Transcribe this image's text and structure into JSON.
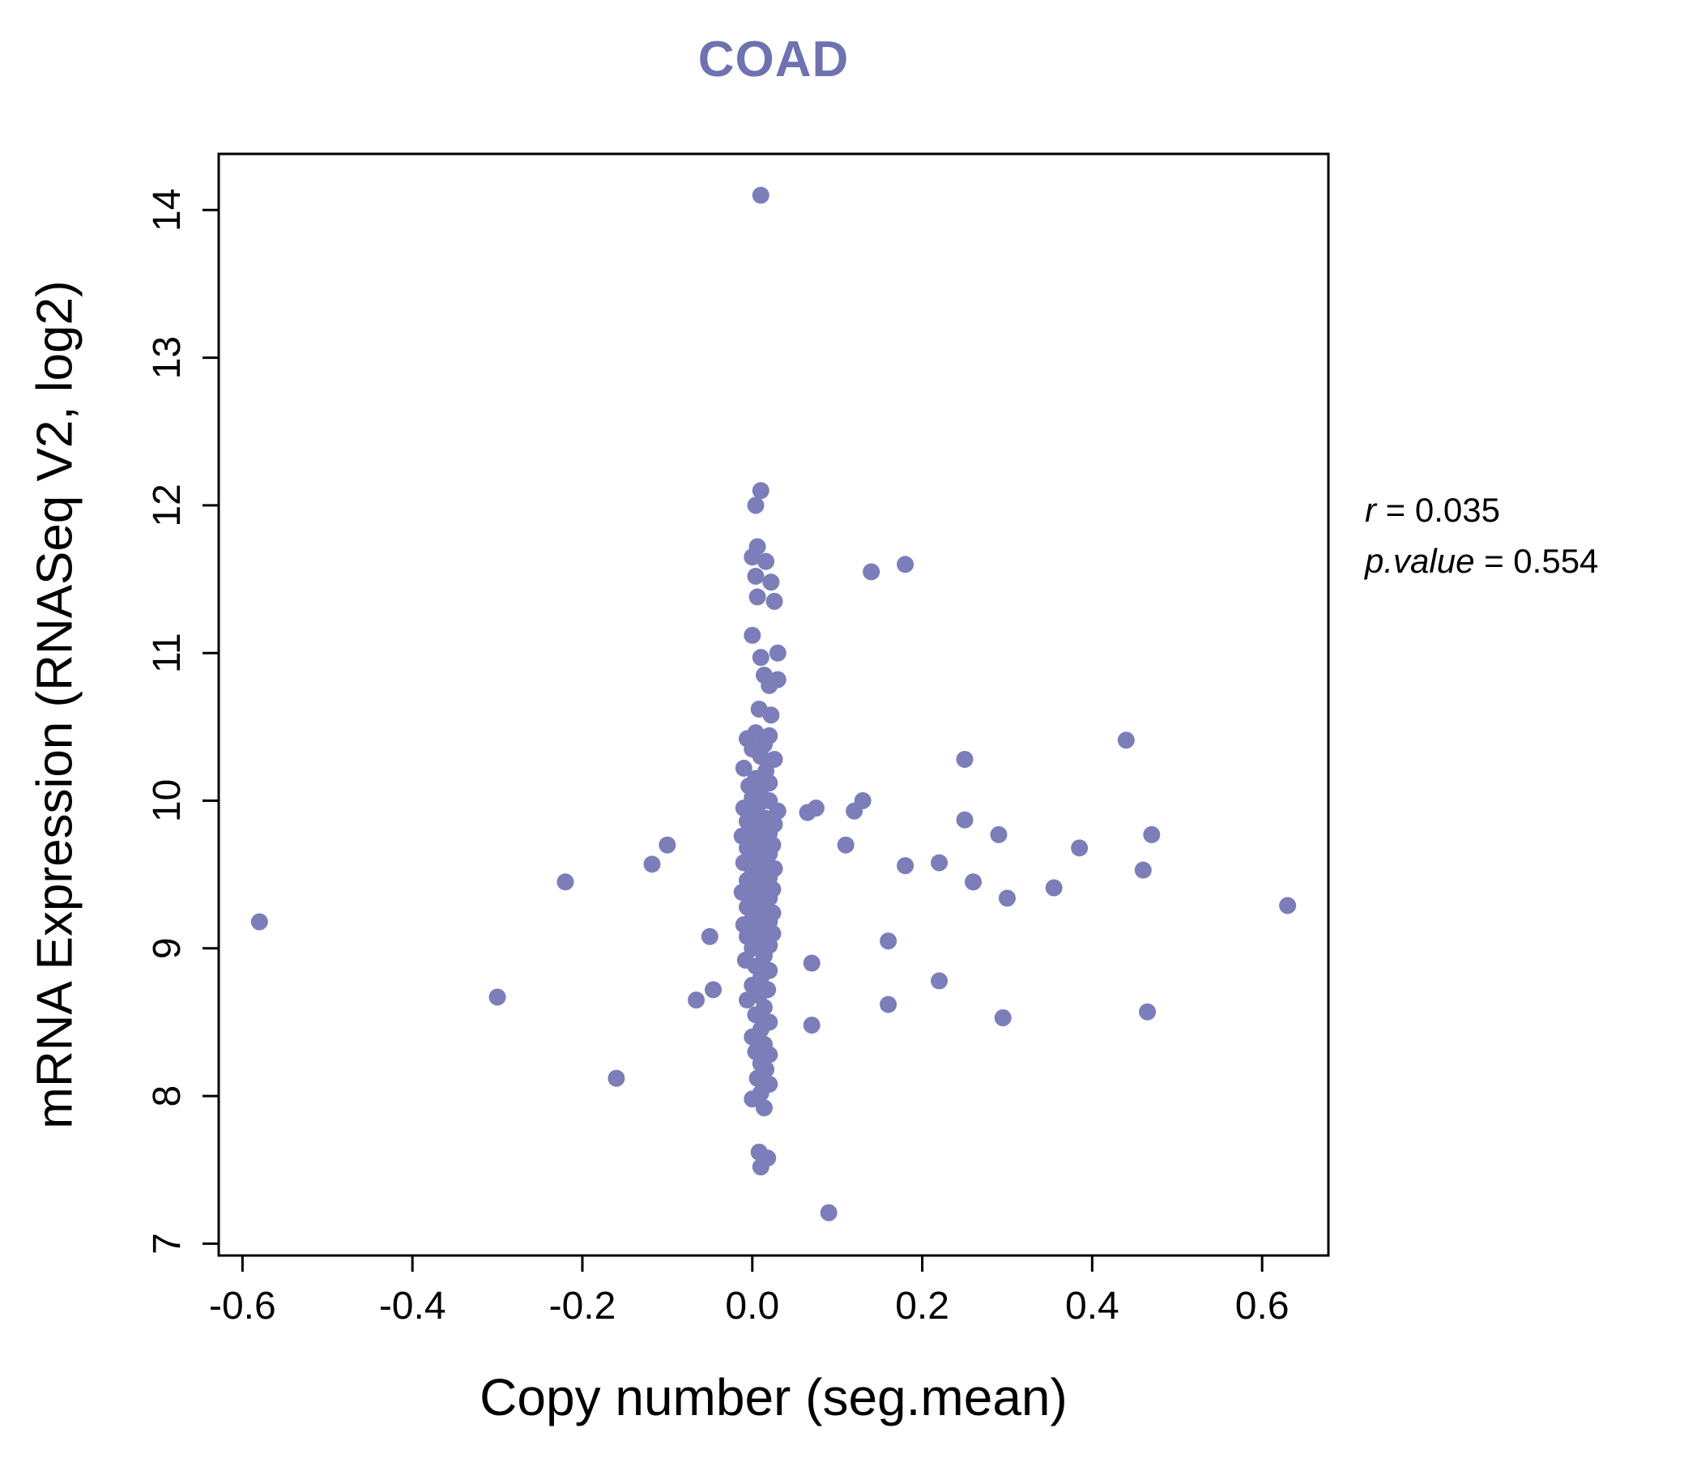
{
  "figure": {
    "background": "#ffffff",
    "axis_color": "#000000"
  },
  "chart_data": {
    "type": "scatter",
    "title": "COAD",
    "title_color": "#6e72b0",
    "point_color": "#7b7eb8",
    "xlabel": "Copy number (seg.mean)",
    "ylabel": "mRNA Expression (RNASeq V2, log2)",
    "xlim": [
      -0.628,
      0.678
    ],
    "ylim": [
      6.92,
      14.38
    ],
    "x_ticks": [
      -0.6,
      -0.4,
      -0.2,
      0.0,
      0.2,
      0.4,
      0.6
    ],
    "x_tick_labels": [
      "-0.6",
      "-0.4",
      "-0.2",
      "0.0",
      "0.2",
      "0.4",
      "0.6"
    ],
    "y_ticks": [
      7,
      8,
      9,
      10,
      11,
      12,
      13,
      14
    ],
    "y_tick_labels": [
      "7",
      "8",
      "9",
      "10",
      "11",
      "12",
      "13",
      "14"
    ],
    "grid": false,
    "legend": "none",
    "annotation": {
      "r_var": "r",
      "r_rest": " = 0.035",
      "p_var": "p.value",
      "p_rest": " = 0.554"
    },
    "points": [
      [
        0.01,
        14.1
      ],
      [
        -0.58,
        9.18
      ],
      [
        -0.3,
        8.67
      ],
      [
        -0.22,
        9.45
      ],
      [
        -0.16,
        8.12
      ],
      [
        -0.118,
        9.57
      ],
      [
        -0.1,
        9.7
      ],
      [
        -0.066,
        8.65
      ],
      [
        -0.046,
        8.72
      ],
      [
        -0.05,
        9.08
      ],
      [
        0.14,
        11.55
      ],
      [
        0.18,
        11.6
      ],
      [
        0.25,
        10.28
      ],
      [
        0.44,
        10.41
      ],
      [
        0.25,
        9.87
      ],
      [
        0.29,
        9.77
      ],
      [
        0.47,
        9.77
      ],
      [
        0.12,
        9.93
      ],
      [
        0.13,
        10.0
      ],
      [
        0.075,
        9.95
      ],
      [
        0.11,
        9.7
      ],
      [
        0.18,
        9.56
      ],
      [
        0.22,
        9.58
      ],
      [
        0.26,
        9.45
      ],
      [
        0.385,
        9.68
      ],
      [
        0.3,
        9.34
      ],
      [
        0.355,
        9.41
      ],
      [
        0.46,
        9.53
      ],
      [
        0.63,
        9.29
      ],
      [
        0.16,
        9.05
      ],
      [
        0.22,
        8.78
      ],
      [
        0.16,
        8.62
      ],
      [
        0.295,
        8.53
      ],
      [
        0.465,
        8.57
      ],
      [
        0.07,
        8.48
      ],
      [
        0.09,
        7.21
      ],
      [
        0.07,
        8.9
      ],
      [
        0.065,
        9.92
      ],
      [
        0.01,
        12.1
      ],
      [
        0.004,
        12.0
      ],
      [
        0.006,
        11.72
      ],
      [
        0.0,
        11.65
      ],
      [
        0.016,
        11.62
      ],
      [
        0.004,
        11.52
      ],
      [
        0.022,
        11.48
      ],
      [
        0.006,
        11.38
      ],
      [
        0.026,
        11.35
      ],
      [
        0.0,
        11.12
      ],
      [
        0.03,
        11.0
      ],
      [
        0.01,
        10.97
      ],
      [
        0.014,
        10.85
      ],
      [
        0.03,
        10.82
      ],
      [
        0.02,
        10.78
      ],
      [
        0.008,
        10.62
      ],
      [
        0.022,
        10.58
      ],
      [
        0.004,
        10.46
      ],
      [
        0.02,
        10.44
      ],
      [
        -0.006,
        10.42
      ],
      [
        0.014,
        10.38
      ],
      [
        0.0,
        10.35
      ],
      [
        0.01,
        10.3
      ],
      [
        0.026,
        10.28
      ],
      [
        -0.01,
        10.22
      ],
      [
        0.016,
        10.2
      ],
      [
        0.004,
        10.15
      ],
      [
        0.02,
        10.12
      ],
      [
        -0.004,
        10.1
      ],
      [
        0.01,
        10.08
      ],
      [
        0.0,
        10.02
      ],
      [
        0.02,
        10.0
      ],
      [
        0.008,
        9.98
      ],
      [
        -0.01,
        9.95
      ],
      [
        0.03,
        9.93
      ],
      [
        0.004,
        9.9
      ],
      [
        0.016,
        9.88
      ],
      [
        -0.006,
        9.86
      ],
      [
        0.026,
        9.84
      ],
      [
        0.01,
        9.82
      ],
      [
        0.0,
        9.8
      ],
      [
        0.02,
        9.78
      ],
      [
        -0.012,
        9.76
      ],
      [
        0.014,
        9.74
      ],
      [
        0.004,
        9.72
      ],
      [
        0.024,
        9.7
      ],
      [
        -0.006,
        9.68
      ],
      [
        0.01,
        9.66
      ],
      [
        0.02,
        9.64
      ],
      [
        0.0,
        9.62
      ],
      [
        0.014,
        9.6
      ],
      [
        -0.01,
        9.58
      ],
      [
        0.006,
        9.56
      ],
      [
        0.026,
        9.54
      ],
      [
        0.01,
        9.52
      ],
      [
        0.0,
        9.5
      ],
      [
        0.02,
        9.48
      ],
      [
        -0.006,
        9.46
      ],
      [
        0.014,
        9.44
      ],
      [
        0.004,
        9.42
      ],
      [
        0.024,
        9.4
      ],
      [
        -0.012,
        9.38
      ],
      [
        0.01,
        9.36
      ],
      [
        0.02,
        9.34
      ],
      [
        0.0,
        9.32
      ],
      [
        0.014,
        9.3
      ],
      [
        -0.006,
        9.28
      ],
      [
        0.006,
        9.26
      ],
      [
        0.024,
        9.24
      ],
      [
        0.01,
        9.22
      ],
      [
        0.0,
        9.2
      ],
      [
        0.02,
        9.18
      ],
      [
        -0.01,
        9.16
      ],
      [
        0.014,
        9.14
      ],
      [
        0.004,
        9.12
      ],
      [
        0.024,
        9.1
      ],
      [
        -0.006,
        9.08
      ],
      [
        0.01,
        9.05
      ],
      [
        0.02,
        9.02
      ],
      [
        0.0,
        9.0
      ],
      [
        0.014,
        8.95
      ],
      [
        -0.008,
        8.92
      ],
      [
        0.004,
        8.88
      ],
      [
        0.02,
        8.85
      ],
      [
        0.01,
        8.8
      ],
      [
        0.0,
        8.75
      ],
      [
        0.018,
        8.72
      ],
      [
        0.008,
        8.68
      ],
      [
        -0.006,
        8.65
      ],
      [
        0.014,
        8.6
      ],
      [
        0.004,
        8.55
      ],
      [
        0.02,
        8.5
      ],
      [
        0.01,
        8.45
      ],
      [
        0.0,
        8.4
      ],
      [
        0.014,
        8.35
      ],
      [
        0.004,
        8.3
      ],
      [
        0.02,
        8.28
      ],
      [
        0.01,
        8.22
      ],
      [
        0.016,
        8.18
      ],
      [
        0.006,
        8.12
      ],
      [
        0.02,
        8.08
      ],
      [
        0.01,
        8.02
      ],
      [
        0.0,
        7.98
      ],
      [
        0.014,
        7.92
      ],
      [
        0.008,
        7.62
      ],
      [
        0.018,
        7.58
      ],
      [
        0.01,
        7.52
      ]
    ]
  }
}
